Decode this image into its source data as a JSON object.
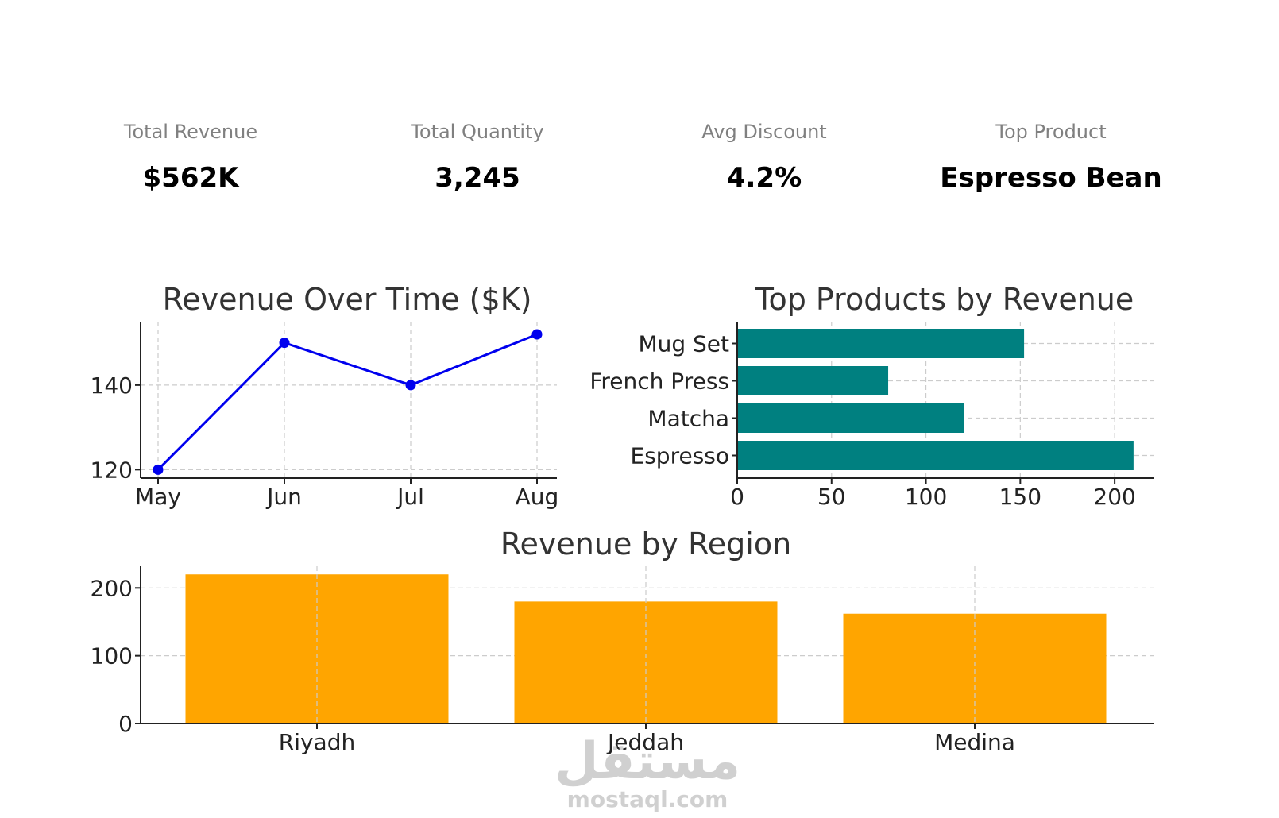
{
  "kpis": [
    {
      "label": "Total Revenue",
      "value": "$562K"
    },
    {
      "label": "Total Quantity",
      "value": "3,245"
    },
    {
      "label": "Avg Discount",
      "value": "4.2%"
    },
    {
      "label": "Top Product",
      "value": "Espresso Bean"
    }
  ],
  "chart_data": [
    {
      "type": "line",
      "title": "Revenue Over Time ($K)",
      "categories": [
        "May",
        "Jun",
        "Jul",
        "Aug"
      ],
      "values": [
        120,
        150,
        140,
        152
      ],
      "yticks": [
        120,
        140
      ],
      "ylim": [
        118,
        155
      ],
      "grid": true,
      "color": "#0000ee"
    },
    {
      "type": "bar",
      "orientation": "horizontal",
      "title": "Top Products by Revenue",
      "categories": [
        "Mug Set",
        "French Press",
        "Matcha",
        "Espresso"
      ],
      "values": [
        152,
        80,
        120,
        210
      ],
      "xticks": [
        0,
        50,
        100,
        150,
        200
      ],
      "xlim": [
        0,
        221
      ],
      "grid": true,
      "color": "#008080"
    },
    {
      "type": "bar",
      "title": "Revenue by Region",
      "categories": [
        "Riyadh",
        "Jeddah",
        "Medina"
      ],
      "values": [
        220,
        180,
        162
      ],
      "yticks": [
        0,
        100,
        200
      ],
      "ylim": [
        0,
        232
      ],
      "grid": true,
      "color": "#ffa500"
    }
  ],
  "watermark": {
    "logo": "مستقل",
    "text": "mostaql.com"
  }
}
